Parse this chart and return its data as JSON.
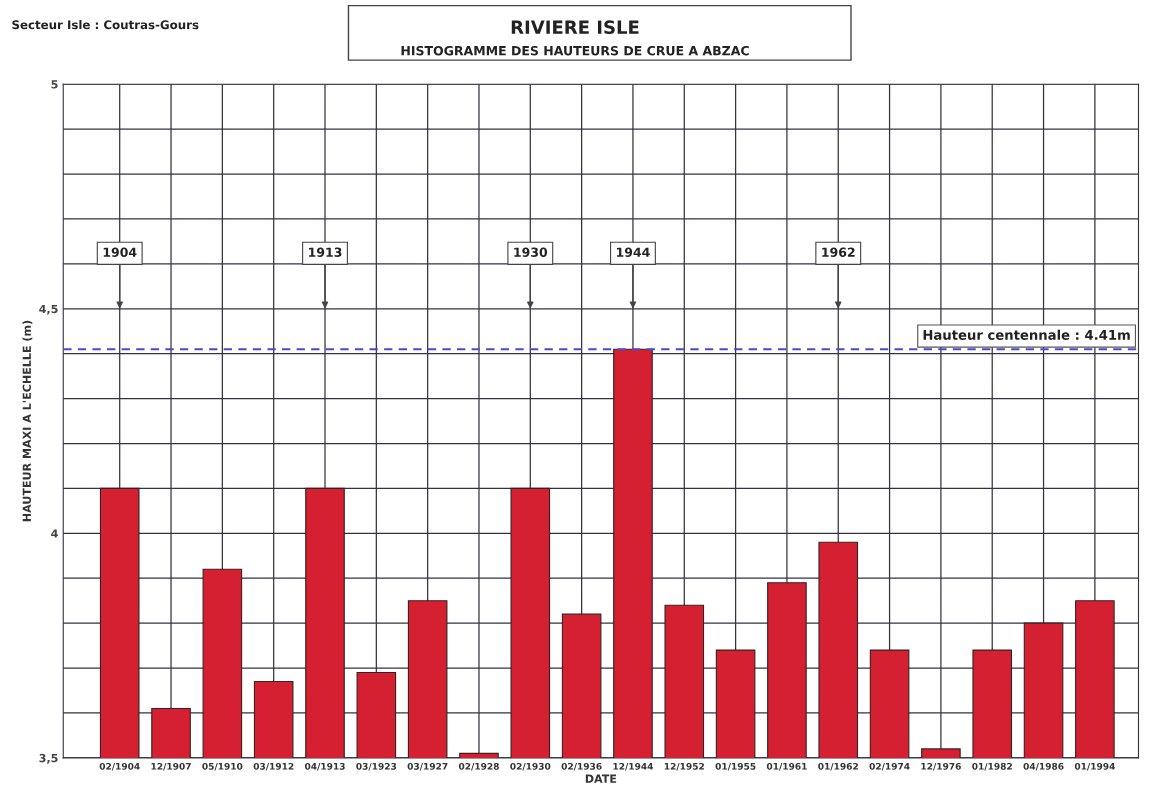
{
  "chart_data": {
    "type": "bar",
    "title": "RIVIERE ISLE",
    "subtitle": "HISTOGRAMME DES HAUTEURS DE CRUE A ABZAC",
    "xlabel": "DATE",
    "ylabel": "HAUTEUR MAXI A L'ECHELLE (m)",
    "categories": [
      "02/1904",
      "12/1907",
      "05/1910",
      "03/1912",
      "04/1913",
      "03/1923",
      "03/1927",
      "02/1928",
      "02/1930",
      "02/1936",
      "12/1944",
      "12/1952",
      "01/1955",
      "01/1961",
      "01/1962",
      "02/1974",
      "12/1976",
      "01/1982",
      "04/1986",
      "01/1994"
    ],
    "series": [
      {
        "color": "#d42030",
        "values": [
          4.1,
          3.61,
          3.92,
          3.67,
          4.1,
          3.69,
          3.85,
          3.51,
          4.1,
          3.82,
          4.41,
          3.84,
          3.74,
          3.89,
          3.98,
          3.74,
          3.52,
          3.74,
          3.8,
          3.85
        ]
      }
    ],
    "ylim": [
      3.5,
      5
    ],
    "yticks": [
      {
        "value": 3.5,
        "label": "3,5"
      },
      {
        "value": 3.6,
        "label": null
      },
      {
        "value": 3.7,
        "label": null
      },
      {
        "value": 3.8,
        "label": null
      },
      {
        "value": 3.9,
        "label": null
      },
      4,
      {
        "value": 4.1,
        "label": null
      },
      {
        "value": 4.2,
        "label": null
      },
      {
        "value": 4.3,
        "label": null
      },
      {
        "value": 4.4,
        "label": null
      },
      {
        "value": 4.5,
        "label": "4,5"
      },
      {
        "value": 4.6,
        "label": null
      },
      {
        "value": 4.7,
        "label": null
      },
      {
        "value": 4.8,
        "label": null
      },
      {
        "value": 4.9,
        "label": null
      },
      5
    ],
    "grid": true,
    "ref_lines": [
      {
        "axis": "y",
        "value": 4.41,
        "label": "Hauteur centennale : 4.41m",
        "color": "#4a4ad0",
        "line_style": "dashed"
      }
    ],
    "annotations": [
      "Secteur Isle : Coutras-Gours",
      "1904",
      "1913",
      "1930",
      "1944",
      "1962"
    ]
  }
}
